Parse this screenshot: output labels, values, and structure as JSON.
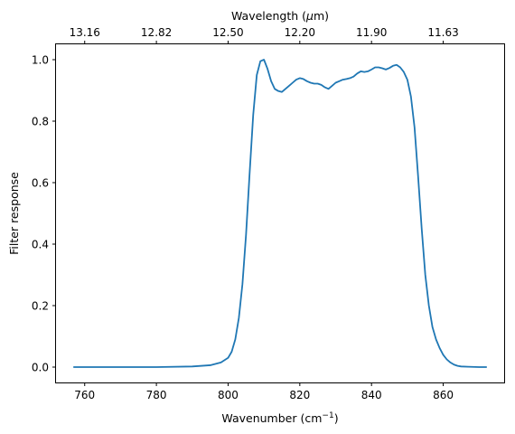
{
  "chart_data": {
    "type": "line",
    "xlabel_main": "Wavenumber (cm",
    "xlabel_sup": "−1",
    "xlabel_tail": ")",
    "ylabel": "Filter response",
    "top_xlabel_main": "Wavelength (",
    "top_xlabel_mu": "μ",
    "top_xlabel_tail": "m)",
    "xlim": [
      752,
      877
    ],
    "ylim": [
      -0.05,
      1.05
    ],
    "grid": false,
    "x_ticks": [
      760,
      780,
      800,
      820,
      840,
      860
    ],
    "x_tick_labels": [
      "760",
      "780",
      "800",
      "820",
      "840",
      "860"
    ],
    "y_ticks": [
      0.0,
      0.2,
      0.4,
      0.6,
      0.8,
      1.0
    ],
    "y_tick_labels": [
      "0.0",
      "0.2",
      "0.4",
      "0.6",
      "0.8",
      "1.0"
    ],
    "top_ticks_wavenumber": [
      760,
      780,
      800,
      820,
      840,
      860
    ],
    "top_tick_labels": [
      "13.16",
      "12.82",
      "12.50",
      "12.20",
      "11.90",
      "11.63"
    ],
    "series": [
      {
        "color": "#1f77b4",
        "x": [
          757,
          770,
          780,
          790,
          795,
          798,
          800,
          801,
          802,
          803,
          804,
          805,
          806,
          807,
          808,
          809,
          810,
          811,
          812,
          813,
          814,
          815,
          816,
          817,
          818,
          819,
          820,
          821,
          822,
          823,
          824,
          825,
          826,
          827,
          828,
          829,
          830,
          831,
          832,
          833,
          834,
          835,
          836,
          837,
          838,
          839,
          840,
          841,
          842,
          843,
          844,
          845,
          846,
          847,
          848,
          849,
          850,
          851,
          852,
          853,
          854,
          855,
          856,
          857,
          858,
          859,
          860,
          861,
          862,
          863,
          864,
          865,
          867,
          870,
          872
        ],
        "y": [
          0.0,
          0.0,
          0.0,
          0.002,
          0.006,
          0.015,
          0.03,
          0.05,
          0.09,
          0.16,
          0.27,
          0.43,
          0.63,
          0.82,
          0.95,
          0.995,
          1.0,
          0.97,
          0.93,
          0.905,
          0.898,
          0.895,
          0.905,
          0.915,
          0.925,
          0.935,
          0.94,
          0.937,
          0.93,
          0.925,
          0.922,
          0.922,
          0.918,
          0.91,
          0.905,
          0.915,
          0.925,
          0.93,
          0.935,
          0.937,
          0.94,
          0.945,
          0.955,
          0.962,
          0.96,
          0.962,
          0.968,
          0.975,
          0.975,
          0.972,
          0.968,
          0.973,
          0.98,
          0.983,
          0.975,
          0.96,
          0.935,
          0.88,
          0.78,
          0.62,
          0.45,
          0.3,
          0.2,
          0.13,
          0.09,
          0.062,
          0.04,
          0.025,
          0.015,
          0.008,
          0.004,
          0.002,
          0.001,
          0.0,
          0.0
        ]
      }
    ]
  }
}
